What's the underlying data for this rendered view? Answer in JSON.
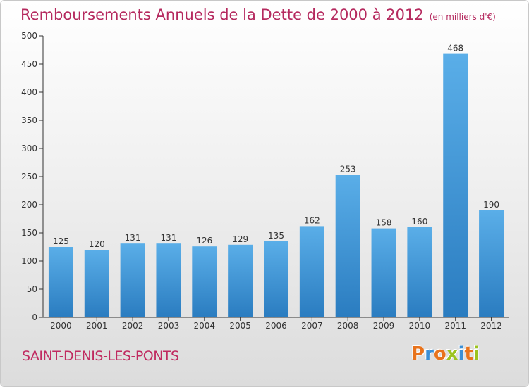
{
  "chart_data": {
    "type": "bar",
    "title": "Remboursements Annuels de la Dette de 2000 à 2012",
    "unit_label": "(en milliers d'€)",
    "categories": [
      "2000",
      "2001",
      "2002",
      "2003",
      "2004",
      "2005",
      "2006",
      "2007",
      "2008",
      "2009",
      "2010",
      "2011",
      "2012"
    ],
    "values": [
      125,
      120,
      131,
      131,
      126,
      129,
      135,
      162,
      253,
      158,
      160,
      468,
      190
    ],
    "ylim": [
      0,
      500
    ],
    "yticks": [
      0,
      50,
      100,
      150,
      200,
      250,
      300,
      350,
      400,
      450,
      500
    ],
    "grid": false,
    "bar_color": "#3f96d8",
    "bar_color_light": "#5aaee8",
    "bar_color_dark": "#2a7cc0"
  },
  "commune": "SAINT-DENIS-LES-PONTS",
  "logo": {
    "text": "Proxiti",
    "colors": [
      "#e8731c",
      "#3a8fd6",
      "#e8731c",
      "#9cc31f",
      "#3a8fd6",
      "#e8731c",
      "#9cc31f"
    ]
  },
  "colors": {
    "title": "#b5295e",
    "axis": "#333333"
  }
}
